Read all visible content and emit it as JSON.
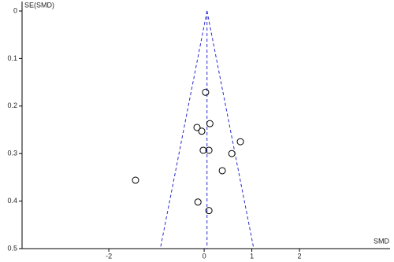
{
  "chart_data": {
    "type": "scatter",
    "x_label": "SMD",
    "y_label": "SE(SMD)",
    "x": [
      0.03,
      0.12,
      -0.15,
      -0.05,
      0.76,
      -0.02,
      0.1,
      0.58,
      0.38,
      -1.44,
      -0.13,
      0.1
    ],
    "values": [
      0.171,
      0.237,
      0.245,
      0.253,
      0.275,
      0.293,
      0.293,
      0.3,
      0.336,
      0.356,
      0.402,
      0.42
    ],
    "xlim": [
      -3.82,
      3.9
    ],
    "xticks": [
      -2,
      0,
      1,
      2
    ],
    "ylim": [
      0,
      0.5
    ],
    "yticks": [
      0,
      0.1,
      0.2,
      0.3,
      0.4,
      0.5
    ],
    "y_inverted": true,
    "funnel": {
      "color": "#2b2bd0",
      "apex": [
        0.06,
        0
      ],
      "left": [
        -0.92,
        0.5
      ],
      "right": [
        1.04,
        0.5
      ]
    },
    "marker_color": "#000000"
  }
}
